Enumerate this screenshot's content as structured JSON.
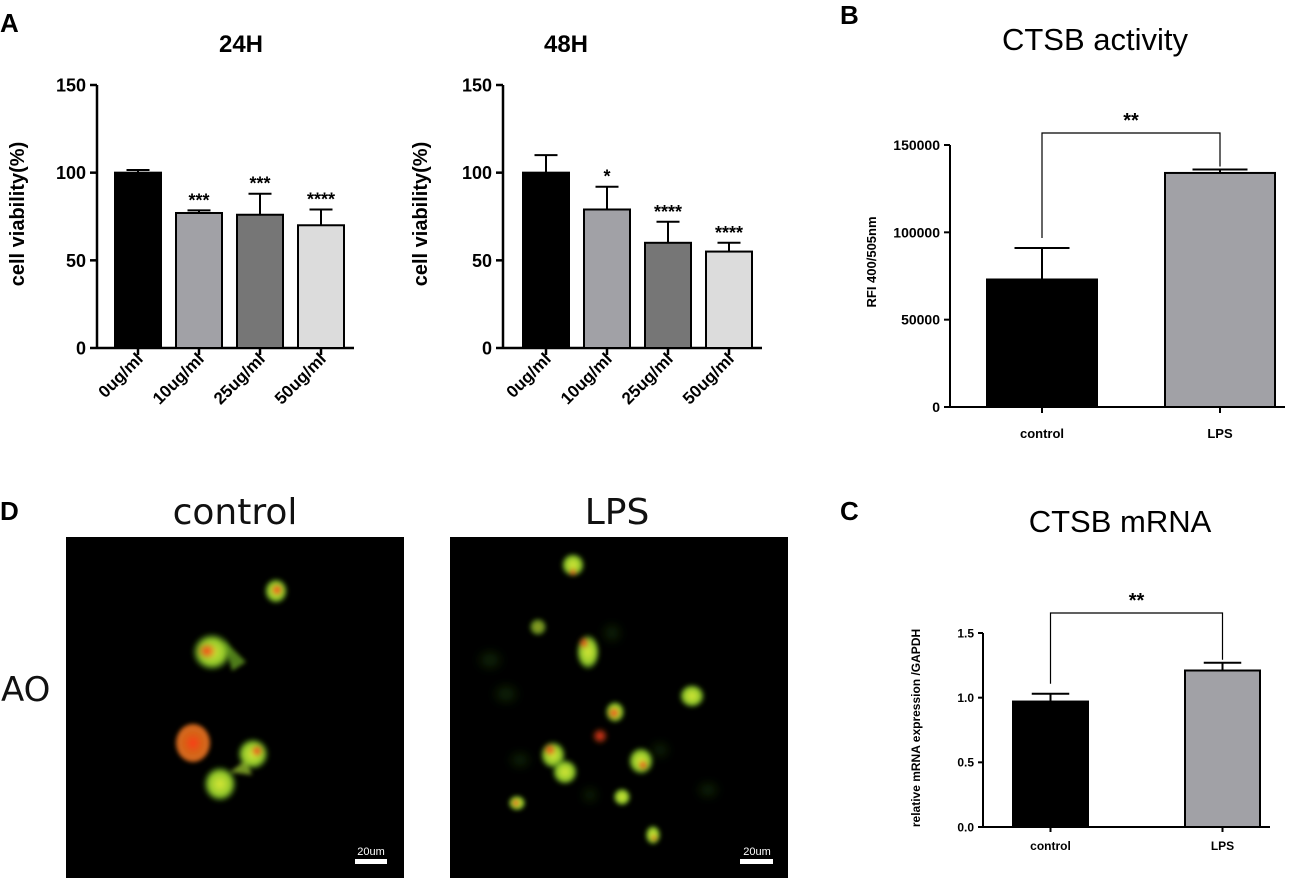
{
  "panels": {
    "A": "A",
    "B": "B",
    "C": "C",
    "D": "D"
  },
  "chart_data": [
    {
      "id": "a1",
      "type": "bar",
      "title": "24H",
      "ylabel": "cell viability(%)",
      "xlabel": "",
      "categories": [
        "0ug/ml",
        "10ug/ml",
        "25ug/ml",
        "50ug/ml"
      ],
      "values": [
        100,
        77,
        76,
        70
      ],
      "errors": [
        1.5,
        1.5,
        12,
        9
      ],
      "significance": [
        "",
        "***",
        "***",
        "****"
      ],
      "colors": [
        "#000000",
        "#a1a1a6",
        "#767676",
        "#dcdcdc"
      ],
      "ylim": [
        0,
        150
      ],
      "yticks": [
        0,
        50,
        100,
        150
      ],
      "grid": false,
      "legend": "none"
    },
    {
      "id": "a2",
      "type": "bar",
      "title": "48H",
      "ylabel": "cell viability(%)",
      "xlabel": "",
      "categories": [
        "0ug/ml",
        "10ug/ml",
        "25ug/ml",
        "50ug/ml"
      ],
      "values": [
        100,
        79,
        60,
        55
      ],
      "errors": [
        10,
        13,
        12,
        5
      ],
      "significance": [
        "",
        "*",
        "****",
        "****"
      ],
      "colors": [
        "#000000",
        "#a1a1a6",
        "#767676",
        "#dcdcdc"
      ],
      "ylim": [
        0,
        150
      ],
      "yticks": [
        0,
        50,
        100,
        150
      ],
      "grid": false,
      "legend": "none"
    },
    {
      "id": "b",
      "type": "bar",
      "title": "CTSB activity",
      "ylabel": "RFI 400/505nm",
      "xlabel": "",
      "categories": [
        "control",
        "LPS"
      ],
      "values": [
        73000,
        134000
      ],
      "errors": [
        18000,
        2000
      ],
      "colors": [
        "#000000",
        "#a1a1a6"
      ],
      "comparison": {
        "from": 0,
        "to": 1,
        "label": "**"
      },
      "ylim": [
        0,
        150000
      ],
      "yticks": [
        0,
        50000,
        100000,
        150000
      ],
      "grid": false,
      "legend": "none"
    },
    {
      "id": "c",
      "type": "bar",
      "title": "CTSB mRNA",
      "ylabel": "relative mRNA expression /GAPDH",
      "xlabel": "",
      "categories": [
        "control",
        "LPS"
      ],
      "values": [
        0.97,
        1.21
      ],
      "errors": [
        0.06,
        0.06
      ],
      "colors": [
        "#000000",
        "#a1a1a6"
      ],
      "comparison": {
        "from": 0,
        "to": 1,
        "label": "**"
      },
      "ylim": [
        0,
        1.5
      ],
      "yticks": [
        "0.0",
        "0.5",
        "1.0",
        "1.5"
      ],
      "grid": false,
      "legend": "none"
    }
  ],
  "images": {
    "row_label": "AO",
    "control": {
      "title": "control",
      "scale_bar": "20um"
    },
    "lps": {
      "title": "LPS",
      "scale_bar": "20um"
    }
  }
}
